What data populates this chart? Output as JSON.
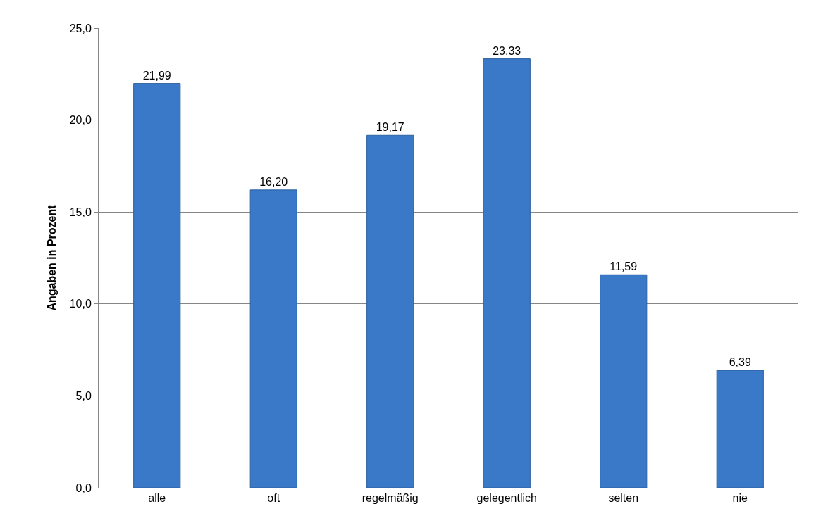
{
  "chart_data": {
    "type": "bar",
    "ylabel": "Angaben in Prozent",
    "categories": [
      "alle",
      "oft",
      "regelmäßig",
      "gelegentlich",
      "selten",
      "nie"
    ],
    "values": [
      21.99,
      16.2,
      19.17,
      23.33,
      11.59,
      6.39
    ],
    "value_labels": [
      "21,99",
      "16,20",
      "19,17",
      "23,33",
      "11,59",
      "6,39"
    ],
    "color": "#3a78c8",
    "ylim": [
      0,
      25
    ],
    "yticks": [
      {
        "value": 0,
        "label": "0,0"
      },
      {
        "value": 5,
        "label": "5,0"
      },
      {
        "value": 10,
        "label": "10,0"
      },
      {
        "value": 15,
        "label": "15,0"
      },
      {
        "value": 20,
        "label": "20,0"
      },
      {
        "value": 25,
        "label": "25,0"
      }
    ],
    "grid": "y"
  }
}
